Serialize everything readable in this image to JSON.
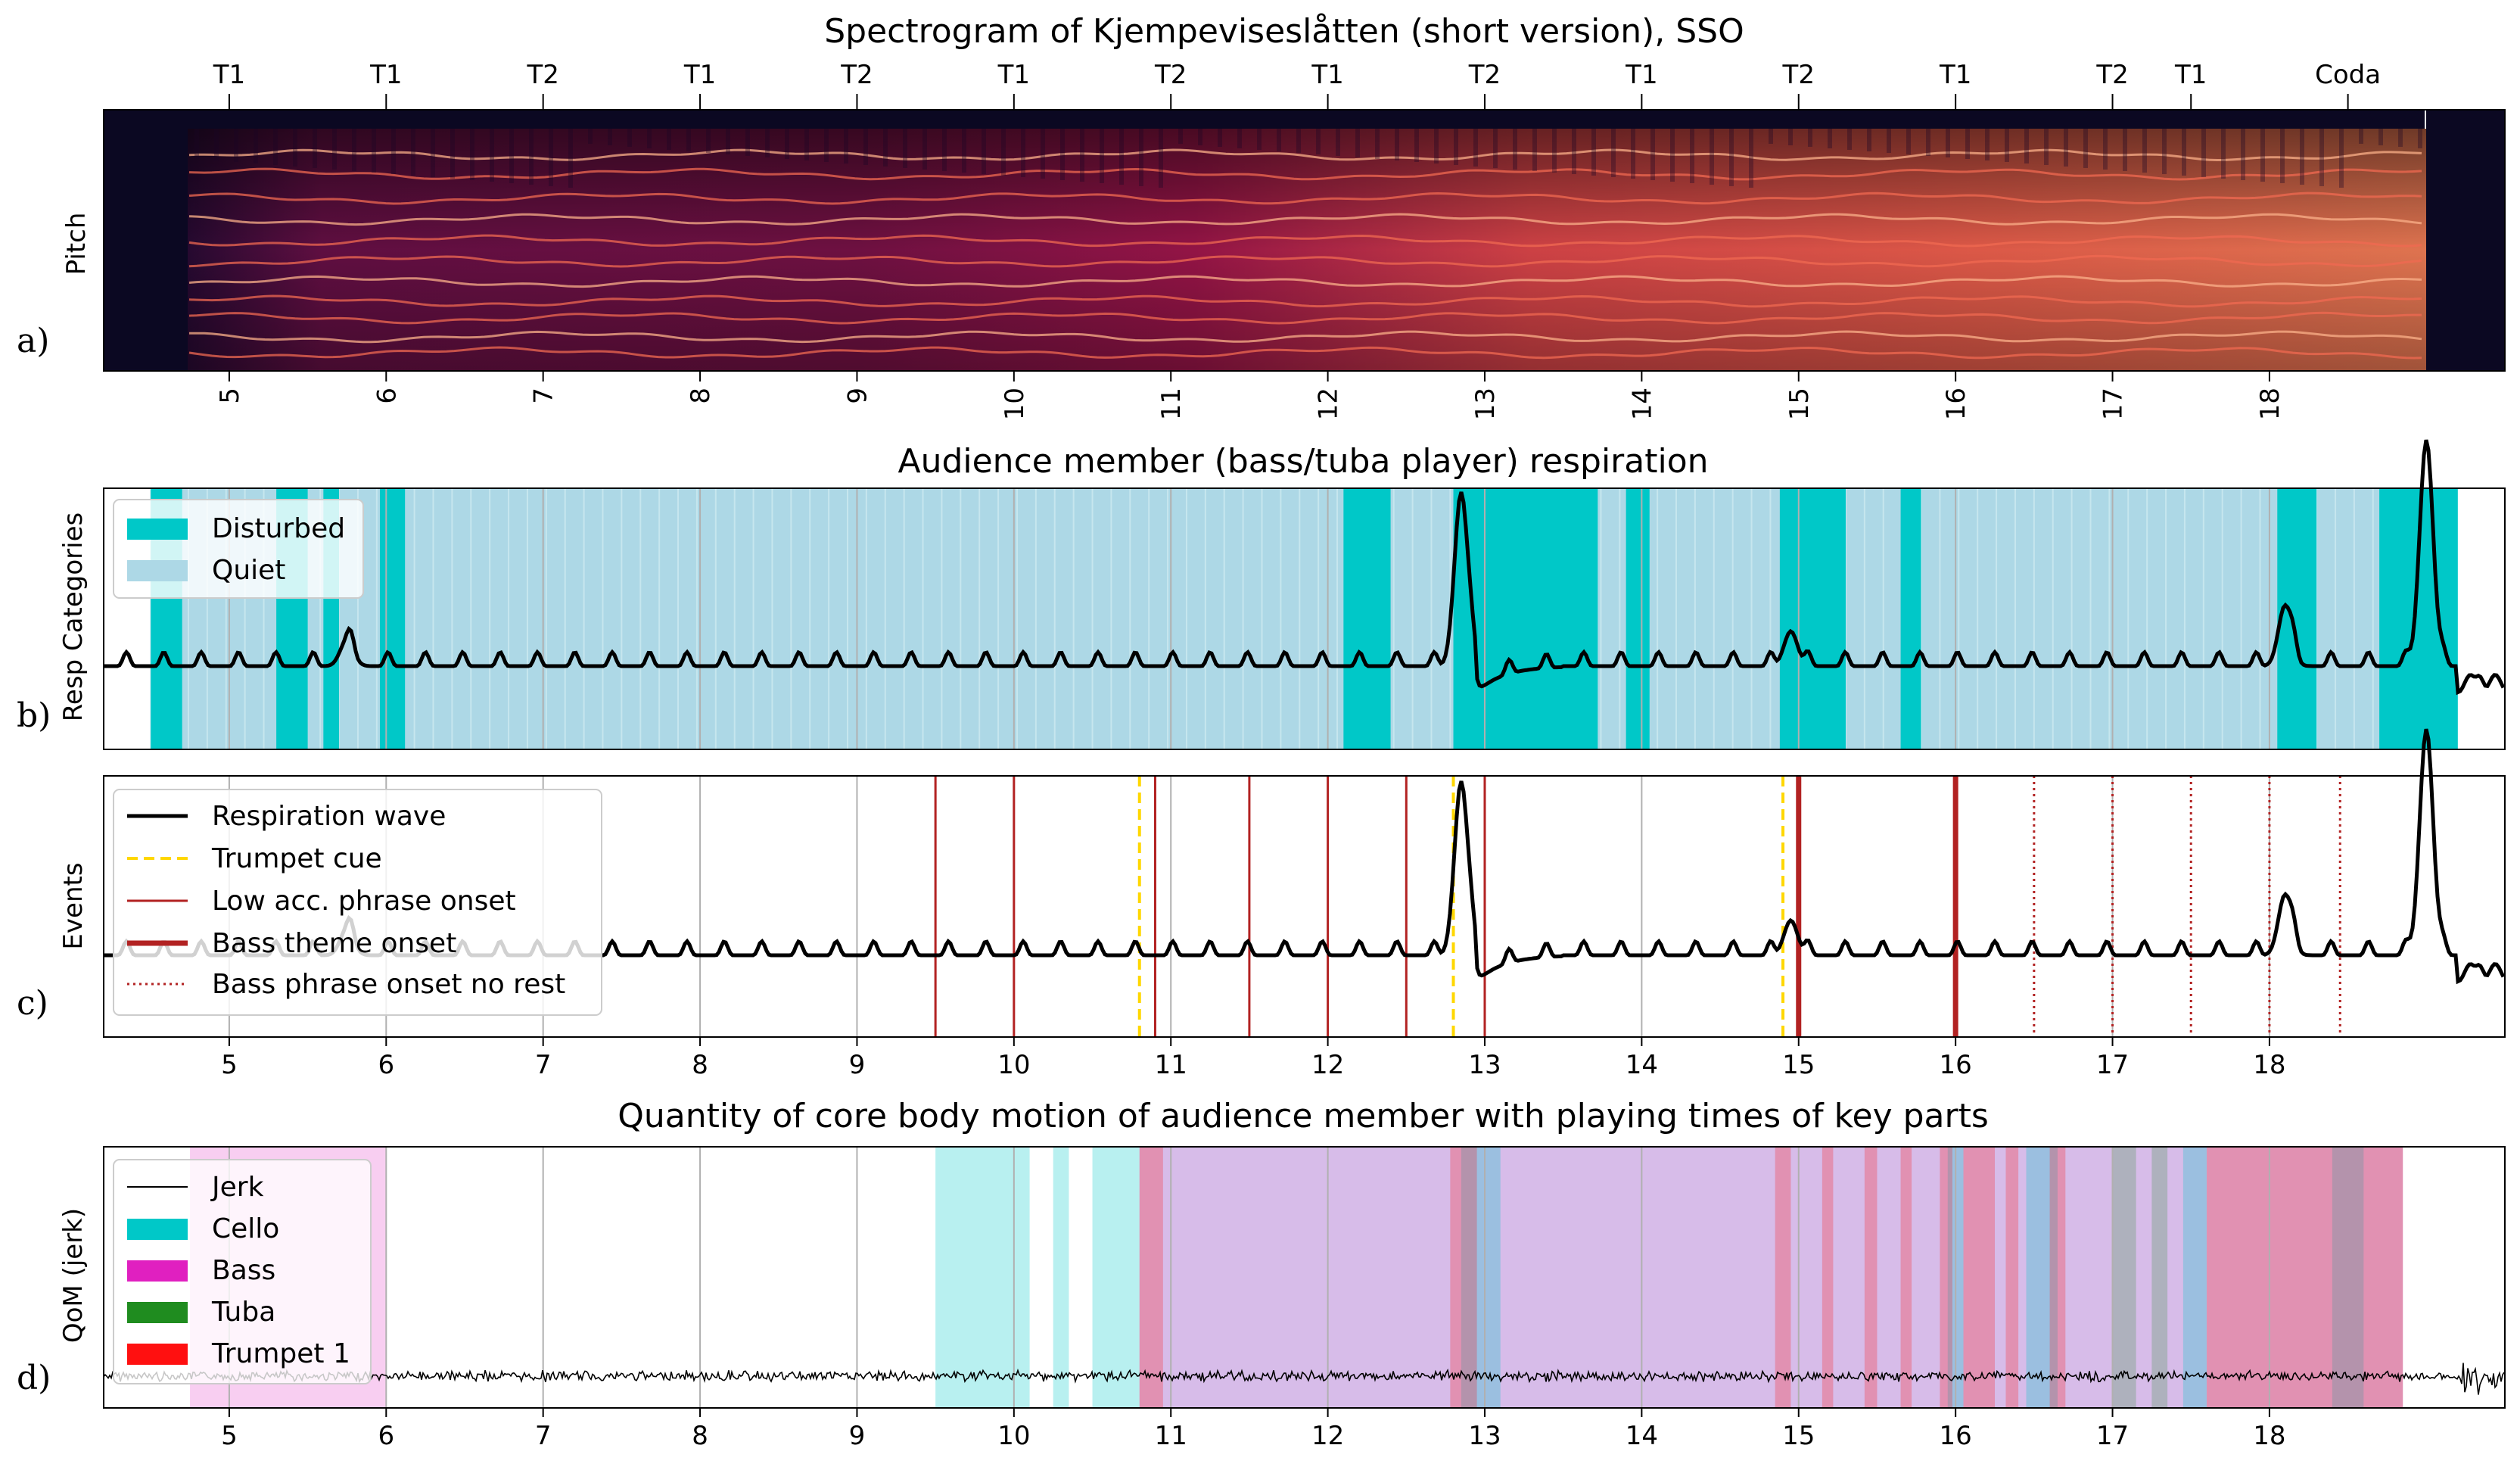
{
  "chart_data": [
    {
      "panel_letter": "a)",
      "type": "heatmap",
      "title": "Spectrogram of Kjempeviseslåtten (short version), SSO",
      "ylabel": "Pitch",
      "xlim": [
        4.2,
        19.5
      ],
      "xticks": [
        "5",
        "6",
        "7",
        "8",
        "9",
        "10",
        "11",
        "12",
        "13",
        "14",
        "15",
        "16",
        "17",
        "18"
      ],
      "section_labels": [
        {
          "label": "T1",
          "x": 5.0
        },
        {
          "label": "T1",
          "x": 6.0
        },
        {
          "label": "T2",
          "x": 7.0
        },
        {
          "label": "T1",
          "x": 8.0
        },
        {
          "label": "T2",
          "x": 9.0
        },
        {
          "label": "T1",
          "x": 10.0
        },
        {
          "label": "T2",
          "x": 11.0
        },
        {
          "label": "T1",
          "x": 12.0
        },
        {
          "label": "T2",
          "x": 13.0
        },
        {
          "label": "T1",
          "x": 14.0
        },
        {
          "label": "T2",
          "x": 15.0
        },
        {
          "label": "T1",
          "x": 16.0
        },
        {
          "label": "T2",
          "x": 17.0
        },
        {
          "label": "T1",
          "x": 17.5
        },
        {
          "label": "Coda",
          "x": 18.5
        }
      ],
      "colors": {
        "background": "#0b0822",
        "low": "#3a0b3a",
        "mid": "#b2184e",
        "high": "#f7795a",
        "peak": "#fde0c0"
      }
    },
    {
      "panel_letter": "b)",
      "type": "line",
      "title": "Audience member (bass/tuba player) respiration",
      "ylabel": "Resp Categories",
      "xlim": [
        4.2,
        19.5
      ],
      "xticks": [
        "5",
        "6",
        "7",
        "8",
        "9",
        "10",
        "11",
        "12",
        "13",
        "14",
        "15",
        "16",
        "17",
        "18"
      ],
      "legend": [
        {
          "label": "Disturbed",
          "color": "#00c8c8"
        },
        {
          "label": "Quiet",
          "color": "#add8e6"
        }
      ],
      "quiet_span": [
        4.5,
        19.2
      ],
      "disturbed_spans": [
        [
          4.5,
          4.7
        ],
        [
          5.3,
          5.5
        ],
        [
          5.6,
          5.7
        ],
        [
          5.96,
          6.12
        ],
        [
          12.1,
          12.4
        ],
        [
          12.8,
          13.72
        ],
        [
          13.9,
          14.05
        ],
        [
          14.88,
          15.3
        ],
        [
          15.65,
          15.78
        ],
        [
          18.05,
          18.3
        ],
        [
          18.7,
          19.2
        ]
      ],
      "respiration_peaks": [
        {
          "x": 12.85,
          "y": 1.0
        },
        {
          "x": 19.0,
          "y": 1.3
        },
        {
          "x": 18.1,
          "y": 0.35
        },
        {
          "x": 14.95,
          "y": 0.2
        },
        {
          "x": 5.75,
          "y": 0.15
        }
      ]
    },
    {
      "panel_letter": "c)",
      "type": "line",
      "ylabel": "Events",
      "xlim": [
        4.2,
        19.5
      ],
      "xticks": [
        "5",
        "6",
        "7",
        "8",
        "9",
        "10",
        "11",
        "12",
        "13",
        "14",
        "15",
        "16",
        "17",
        "18"
      ],
      "legend": [
        {
          "label": "Respiration wave",
          "color": "#000000",
          "style": "solid"
        },
        {
          "label": "Trumpet cue",
          "color": "#ffd700",
          "style": "dashed"
        },
        {
          "label": "Low acc. phrase onset",
          "color": "#b22222",
          "style": "solid"
        },
        {
          "label": "Bass theme onset",
          "color": "#b22222",
          "style": "thick"
        },
        {
          "label": "Bass phrase onset no rest",
          "color": "#b22222",
          "style": "dotted"
        }
      ],
      "trumpet_cues": [
        10.8,
        12.8,
        14.9
      ],
      "low_acc_phrase_onsets": [
        9.5,
        10.0,
        10.9,
        11.5,
        12.0,
        12.5,
        13.0
      ],
      "bass_theme_onsets": [
        15.0,
        16.0
      ],
      "bass_phrase_onsets_no_rest": [
        16.5,
        17.0,
        17.5,
        18.0,
        18.45
      ]
    },
    {
      "panel_letter": "d)",
      "type": "line",
      "title": "Quantity of core body motion of audience member with playing times of key parts",
      "ylabel": "QoM (jerk)",
      "xlim": [
        4.2,
        19.5
      ],
      "xticks": [
        "5",
        "6",
        "7",
        "8",
        "9",
        "10",
        "11",
        "12",
        "13",
        "14",
        "15",
        "16",
        "17",
        "18"
      ],
      "legend": [
        {
          "label": "Jerk",
          "color": "#000000"
        },
        {
          "label": "Cello",
          "color": "#00c8c8"
        },
        {
          "label": "Bass",
          "color": "#e020c0"
        },
        {
          "label": "Tuba",
          "color": "#1f8c1f"
        },
        {
          "label": "Trumpet 1",
          "color": "#ff1010"
        }
      ],
      "part_spans": {
        "Cello": [
          [
            9.5,
            10.1
          ],
          [
            10.25,
            10.35
          ],
          [
            10.5,
            10.8
          ],
          [
            12.85,
            13.1
          ],
          [
            15.95,
            16.05
          ],
          [
            16.45,
            16.65
          ],
          [
            17.45,
            17.6
          ],
          [
            18.4,
            18.6
          ]
        ],
        "Bass": [
          [
            4.75,
            6.0
          ],
          [
            10.8,
            18.85
          ]
        ],
        "Tuba": [
          [
            17.0,
            17.15
          ],
          [
            17.25,
            17.35
          ]
        ],
        "Trumpet 1": [
          [
            10.8,
            10.95
          ],
          [
            12.78,
            12.95
          ],
          [
            14.85,
            14.95
          ],
          [
            15.15,
            15.22
          ],
          [
            15.42,
            15.5
          ],
          [
            15.65,
            15.72
          ],
          [
            15.9,
            15.98
          ],
          [
            16.05,
            16.25
          ],
          [
            16.32,
            16.4
          ],
          [
            16.6,
            16.7
          ],
          [
            17.6,
            18.85
          ]
        ]
      }
    }
  ]
}
